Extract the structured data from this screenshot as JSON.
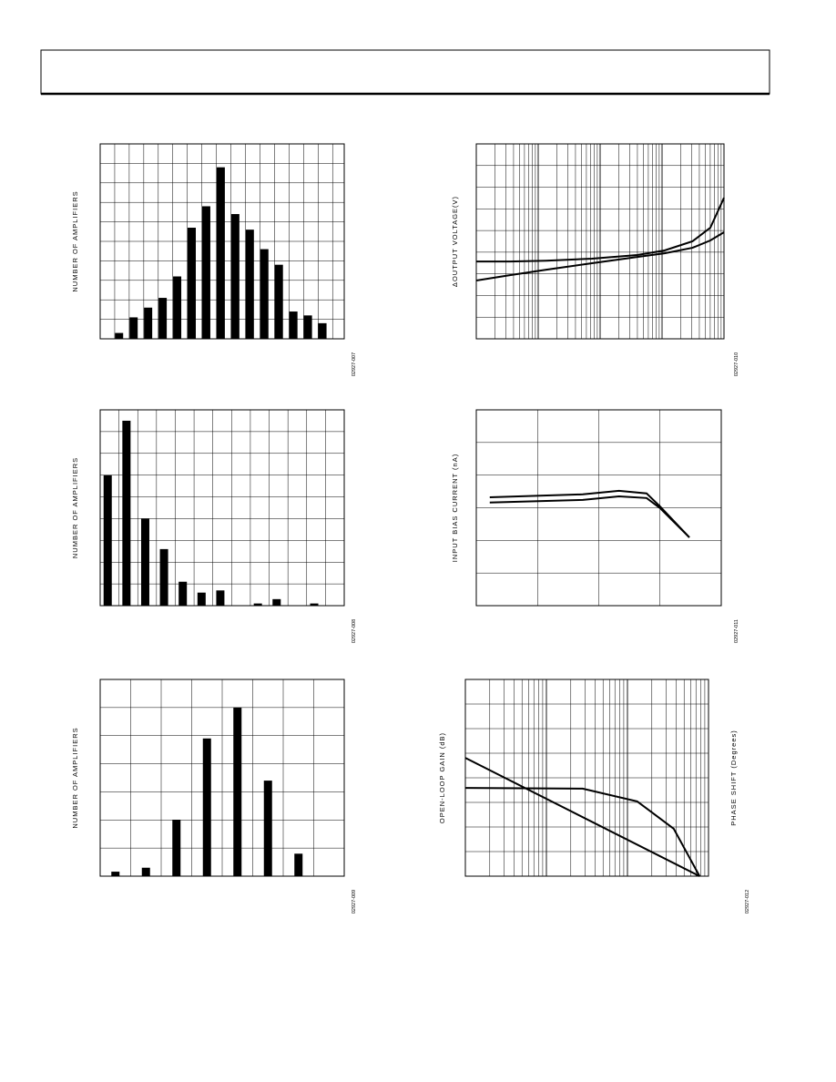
{
  "chart_data": [
    {
      "type": "bar",
      "y_label": "NUMBER OF AMPLIFIERS",
      "code": "02927-007",
      "categories": [
        null,
        null,
        null,
        null,
        null,
        null,
        null,
        null,
        null,
        null,
        null,
        null,
        null,
        null,
        null
      ],
      "values": [
        0.3,
        1.1,
        1.6,
        2.1,
        3.2,
        5.7,
        6.8,
        8.8,
        6.4,
        5.6,
        4.6,
        3.8,
        1.4,
        1.2,
        0.8
      ],
      "color": "#000000",
      "ylim": [
        0,
        10
      ],
      "yticks": [
        0,
        1,
        2,
        3,
        4,
        5,
        6,
        7,
        8,
        9,
        10
      ],
      "grid": true
    },
    {
      "type": "bar",
      "y_label": "NUMBER OF AMPLIFIERS",
      "code": "02927-008",
      "categories": [
        null,
        null,
        null,
        null,
        null,
        null,
        null,
        null,
        null,
        null,
        null,
        null
      ],
      "values": [
        6.0,
        8.5,
        4.0,
        2.6,
        1.1,
        0.6,
        0.7,
        0,
        0.1,
        0.3,
        0,
        0.1
      ],
      "color": "#000000",
      "ylim": [
        0,
        9
      ],
      "yticks": [
        0,
        1,
        2,
        3,
        4,
        5,
        6,
        7,
        8,
        9
      ],
      "grid": true
    },
    {
      "type": "bar",
      "y_label": "NUMBER OF AMPLIFIERS",
      "code": "02927-009",
      "categories": [
        null,
        null,
        null,
        null,
        null,
        null,
        null
      ],
      "values": [
        0.16,
        0.3,
        2.0,
        4.9,
        6.0,
        3.4,
        0.8
      ],
      "color": "#000000",
      "ylim": [
        0,
        7
      ],
      "yticks": [
        0,
        1,
        2,
        3,
        4,
        5,
        6,
        7
      ],
      "grid": true
    },
    {
      "type": "line",
      "y_label": "ΔOUTPUT VOLTAGE(V)",
      "code": "02927-010",
      "log_x": true,
      "xlim": [
        1,
        10000
      ],
      "ylim": [
        0,
        9
      ],
      "yticks": [
        0,
        1,
        2,
        3,
        4,
        5,
        6,
        7,
        8,
        9
      ],
      "grid": true,
      "series": [
        {
          "color": "#000000",
          "x": [
            1,
            3.5,
            13.5,
            74,
            398,
            1096,
            3090,
            6026,
            10000
          ],
          "values": [
            3.57,
            3.57,
            3.61,
            3.7,
            3.87,
            4.08,
            4.5,
            5.13,
            6.51
          ]
        },
        {
          "color": "#000000",
          "x": [
            1,
            3.5,
            13.5,
            74,
            398,
            1096,
            3090,
            6026,
            10000
          ],
          "values": [
            2.69,
            2.94,
            3.19,
            3.49,
            3.78,
            3.95,
            4.2,
            4.54,
            4.92
          ]
        }
      ]
    },
    {
      "type": "line",
      "y_label": "INPUT BIAS CURRENT (nA)",
      "code": "02927-011",
      "xlim": [
        0,
        4
      ],
      "xticks": [
        0,
        1,
        2,
        3,
        4
      ],
      "ylim": [
        0,
        6
      ],
      "yticks": [
        0,
        1,
        2,
        3,
        4,
        5,
        6
      ],
      "grid": true,
      "series": [
        {
          "color": "#000000",
          "x": [
            0.22,
            1.74,
            2.33,
            2.78,
            3.0,
            3.48
          ],
          "values": [
            3.32,
            3.41,
            3.52,
            3.44,
            3.04,
            2.09
          ]
        },
        {
          "color": "#000000",
          "x": [
            0.22,
            1.74,
            2.33,
            2.78,
            3.0,
            3.48
          ],
          "values": [
            3.16,
            3.24,
            3.35,
            3.3,
            2.99,
            2.09
          ]
        }
      ]
    },
    {
      "type": "line",
      "y_label": "OPEN-LOOP GAIN (dB)",
      "y2_label": "PHASE SHIFT (Degrees)",
      "code": "02927-012",
      "log_x": true,
      "xlim": [
        1,
        1000
      ],
      "ylim": [
        0,
        8
      ],
      "yticks": [
        0,
        1,
        2,
        3,
        4,
        5,
        6,
        7,
        8
      ],
      "y2lim": [
        0,
        8
      ],
      "grid": true,
      "series": [
        {
          "color": "#000000",
          "x": [
            1,
            776
          ],
          "values": [
            4.81,
            0
          ]
        },
        {
          "color": "#000000",
          "axis": "y2",
          "x": [
            1,
            28,
            132,
            372,
            776
          ],
          "values": [
            3.59,
            3.56,
            3.04,
            1.93,
            0
          ]
        }
      ]
    }
  ]
}
